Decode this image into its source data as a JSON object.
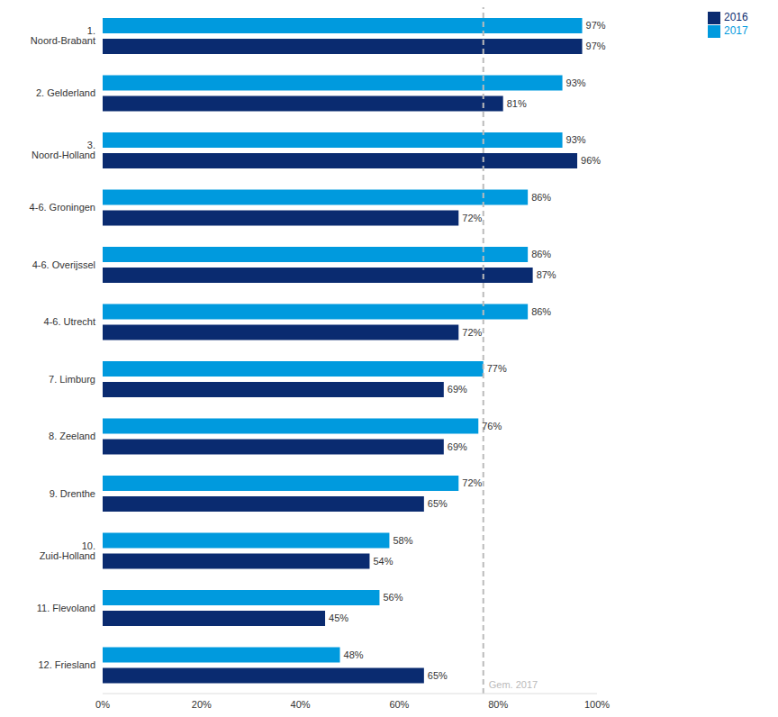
{
  "chart_data": {
    "type": "bar",
    "orientation": "horizontal",
    "categories": [
      "1. Noord-Brabant",
      "2. Gelderland",
      "3. Noord-Holland",
      "4-6. Groningen",
      "4-6. Overijssel",
      "4-6. Utrecht",
      "7. Limburg",
      "8. Zeeland",
      "9. Drenthe",
      "10. Zuid-Holland",
      "11. Flevoland",
      "12. Friesland"
    ],
    "series": [
      {
        "name": "2017",
        "color": "#009ADE",
        "values": [
          97,
          93,
          93,
          86,
          86,
          86,
          77,
          76,
          72,
          58,
          56,
          48
        ],
        "value_labels": [
          "97%",
          "93%",
          "93%",
          "86%",
          "86%",
          "86%",
          "77%",
          "76%",
          "72%",
          "58%",
          "56%",
          "48%"
        ]
      },
      {
        "name": "2016",
        "color": "#0A2B70",
        "values": [
          97,
          81,
          96,
          72,
          87,
          72,
          69,
          69,
          65,
          54,
          45,
          65
        ],
        "value_labels": [
          "97%",
          "81%",
          "96%",
          "72%",
          "87%",
          "72%",
          "69%",
          "69%",
          "65%",
          "54%",
          "45%",
          "65%"
        ]
      }
    ],
    "xlim": [
      0,
      100
    ],
    "xticks": [
      {
        "value": 0,
        "label": "0%"
      },
      {
        "value": 20,
        "label": "20%"
      },
      {
        "value": 40,
        "label": "40%"
      },
      {
        "value": 60,
        "label": "60%"
      },
      {
        "value": 80,
        "label": "80%"
      },
      {
        "value": 100,
        "label": "100%"
      }
    ],
    "reference_line": {
      "value": 77,
      "label": "Gem. 2017"
    },
    "data_labels": true,
    "legend": "top-right",
    "grid": false
  }
}
